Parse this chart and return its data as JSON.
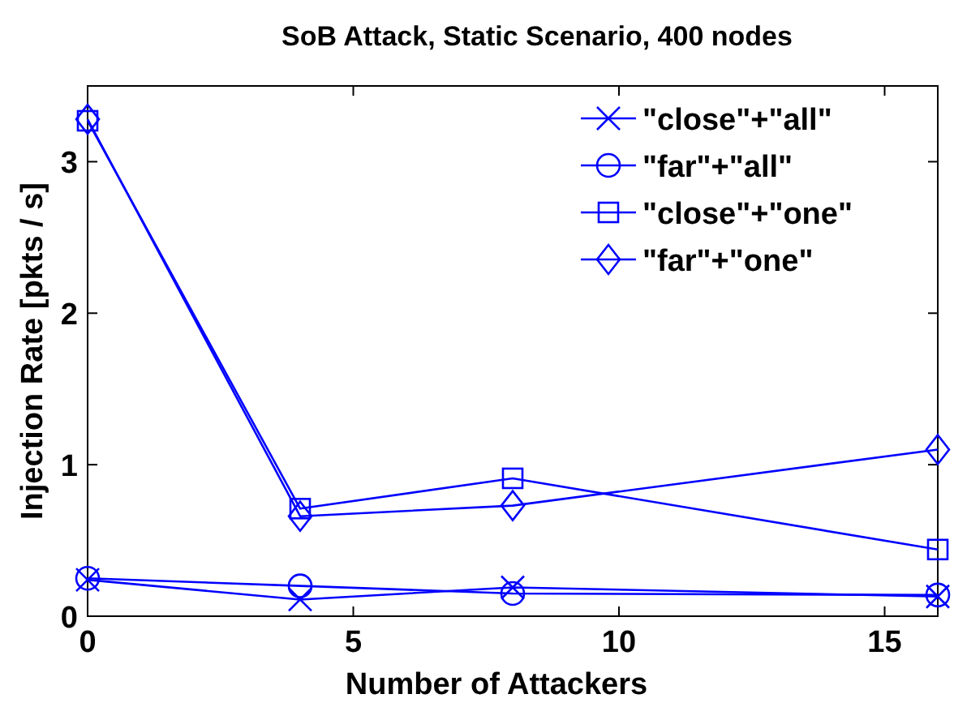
{
  "chart_data": {
    "type": "line",
    "title": "SoB Attack, Static Scenario, 400 nodes",
    "xlabel": "Number of Attackers",
    "ylabel": "Injection Rate [pkts / s]",
    "x": [
      0,
      4,
      8,
      16
    ],
    "xlim": [
      0,
      16
    ],
    "xticks": [
      0,
      5,
      10,
      15
    ],
    "ylim": [
      0,
      3.5
    ],
    "yticks": [
      0,
      1,
      2,
      3
    ],
    "grid": false,
    "legend": "top right",
    "series": [
      {
        "name": "\"close\"+\"all\"",
        "color": "#0000ff",
        "marker": "cross",
        "values": [
          0.24,
          0.11,
          0.19,
          0.13
        ]
      },
      {
        "name": "\"far\"+\"all\"",
        "color": "#0000ff",
        "marker": "circle",
        "values": [
          0.25,
          0.2,
          0.15,
          0.14
        ]
      },
      {
        "name": "\"close\"+\"one\"",
        "color": "#0000ff",
        "marker": "square",
        "values": [
          3.27,
          0.71,
          0.91,
          0.44
        ]
      },
      {
        "name": "\"far\"+\"one\"",
        "color": "#0000ff",
        "marker": "diamond",
        "values": [
          3.28,
          0.66,
          0.73,
          1.1
        ]
      }
    ]
  }
}
